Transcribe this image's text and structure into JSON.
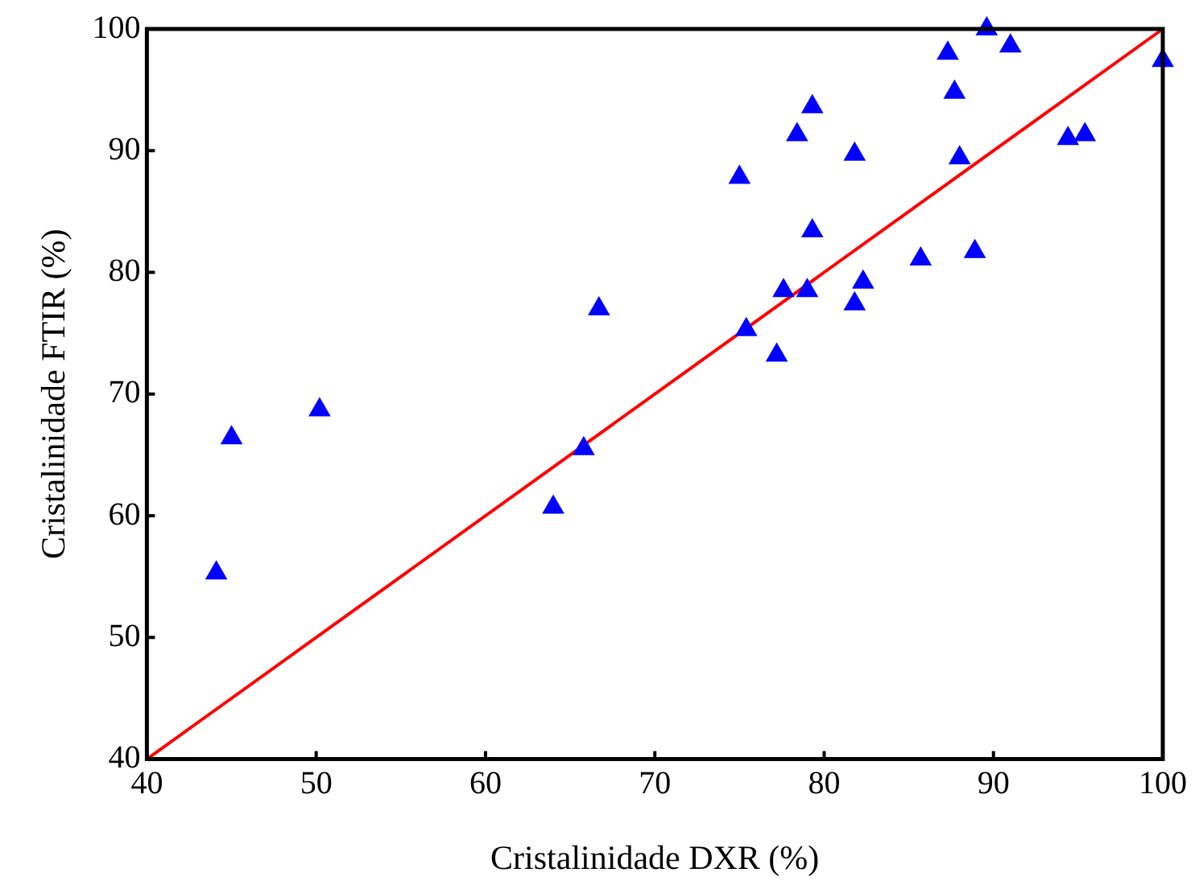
{
  "chart_data": {
    "type": "scatter",
    "xlabel": "Cristalinidade DXR (%)",
    "ylabel": "Cristalinidade FTIR (%)",
    "xlim": [
      40,
      100
    ],
    "ylim": [
      40,
      100
    ],
    "xticks": [
      40,
      50,
      60,
      70,
      80,
      90,
      100
    ],
    "yticks": [
      40,
      50,
      60,
      70,
      80,
      90,
      100
    ],
    "grid": false,
    "legend": false,
    "marker": "triangle",
    "series": [
      {
        "color": "#0000ff",
        "x": [
          44.1,
          45.0,
          50.2,
          64.0,
          65.8,
          66.7,
          75.0,
          79.3,
          79.3,
          78.4,
          81.8,
          87.3,
          89.6,
          91.0,
          87.7,
          88.0,
          94.4,
          95.4,
          100,
          85.7,
          88.9,
          77.6,
          79.0,
          82.3,
          81.8,
          75.4,
          77.2
        ],
        "values": [
          55.3,
          66.4,
          68.7,
          60.7,
          65.5,
          77.0,
          87.8,
          83.4,
          93.6,
          91.3,
          89.7,
          98.0,
          100,
          98.6,
          94.8,
          89.4,
          91.0,
          91.3,
          97.4,
          81.1,
          81.7,
          78.5,
          78.5,
          79.2,
          77.4,
          75.3,
          73.2
        ]
      },
      {
        "type": "line",
        "color": "#ff0000",
        "marker": "none",
        "x": [
          40,
          100
        ],
        "values": [
          40,
          100
        ]
      }
    ]
  }
}
